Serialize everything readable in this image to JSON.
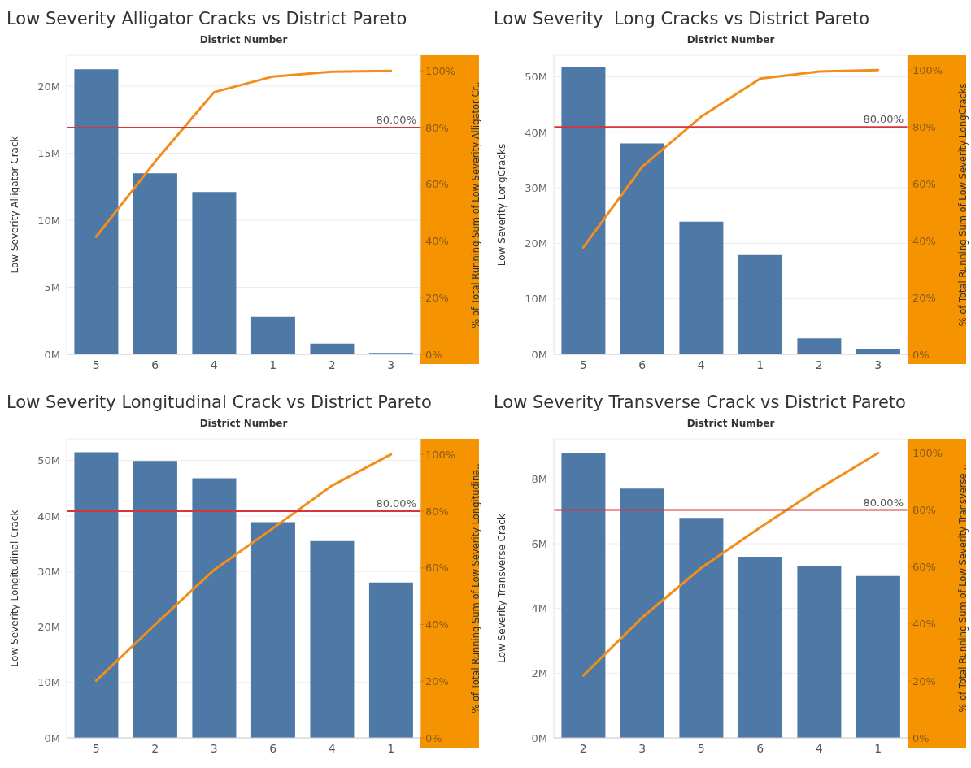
{
  "chart_data": [
    {
      "type": "bar",
      "title": "Low Severity Alligator Cracks vs District Pareto",
      "xlabel": "District Number",
      "ylabel": "Low Severity Alligator Crack",
      "y2label": "% of Total Running Sum of Low Severity Alligator Cr..",
      "categories": [
        "5",
        "6",
        "4",
        "1",
        "2",
        "3"
      ],
      "series": [
        {
          "color": "#4e79a7",
          "values": [
            21250000,
            13500000,
            12100000,
            2800000,
            800000,
            100000
          ]
        },
        {
          "type": "line",
          "axis": "y2",
          "color": "#f28e1c",
          "values": [
            41.5,
            68,
            92.5,
            98,
            99.7,
            100
          ]
        }
      ],
      "ylim": [
        0,
        22300000
      ],
      "yticks": [
        {
          "value": 0,
          "label": "0M"
        },
        {
          "value": 5000000,
          "label": "5M"
        },
        {
          "value": 10000000,
          "label": "10M"
        },
        {
          "value": 15000000,
          "label": "15M"
        },
        {
          "value": 20000000,
          "label": "20M"
        }
      ],
      "y2lim": [
        0,
        105.5
      ],
      "y2ticks": [
        {
          "value": 0,
          "label": "0%"
        },
        {
          "value": 20,
          "label": "20%"
        },
        {
          "value": 40,
          "label": "40%"
        },
        {
          "value": 60,
          "label": "60%"
        },
        {
          "value": 80,
          "label": "80%"
        },
        {
          "value": 100,
          "label": "100%"
        }
      ],
      "ref_lines": [
        {
          "axis": "y2",
          "value": 80,
          "label": "80.00%",
          "color": "#d9343a"
        }
      ],
      "grid": "y",
      "legend": false,
      "marker": "none"
    },
    {
      "type": "bar",
      "title": "Low Severity  Long Cracks vs District Pareto",
      "xlabel": "District Number",
      "ylabel": "Low Severity LongCracks",
      "y2label": "% of Total Running Sum of Low Severity LongCracks",
      "categories": [
        "5",
        "6",
        "4",
        "1",
        "2",
        "3"
      ],
      "series": [
        {
          "color": "#4e79a7",
          "values": [
            51700000,
            38000000,
            23900000,
            17900000,
            2900000,
            1000000
          ]
        },
        {
          "type": "line",
          "axis": "y2",
          "color": "#f28e1c",
          "values": [
            37.6,
            66,
            83.6,
            97,
            99.5,
            100
          ]
        }
      ],
      "ylim": [
        0,
        53900000
      ],
      "yticks": [
        {
          "value": 0,
          "label": "0M"
        },
        {
          "value": 10000000,
          "label": "10M"
        },
        {
          "value": 20000000,
          "label": "20M"
        },
        {
          "value": 30000000,
          "label": "30M"
        },
        {
          "value": 40000000,
          "label": "40M"
        },
        {
          "value": 50000000,
          "label": "50M"
        }
      ],
      "y2lim": [
        0,
        105.2
      ],
      "y2ticks": [
        {
          "value": 0,
          "label": "0%"
        },
        {
          "value": 20,
          "label": "20%"
        },
        {
          "value": 40,
          "label": "40%"
        },
        {
          "value": 60,
          "label": "60%"
        },
        {
          "value": 80,
          "label": "80%"
        },
        {
          "value": 100,
          "label": "100%"
        }
      ],
      "ref_lines": [
        {
          "axis": "y2",
          "value": 80,
          "label": "80.00%",
          "color": "#d9343a"
        }
      ],
      "grid": "y",
      "legend": false,
      "marker": "none"
    },
    {
      "type": "bar",
      "title": "Low Severity Longitudinal Crack vs District Pareto",
      "xlabel": "District Number",
      "ylabel": "Low Severity Longitudinal Crack",
      "y2label": "% of Total Running Sum of Low Severity Longitudina..",
      "categories": [
        "5",
        "2",
        "3",
        "6",
        "4",
        "1"
      ],
      "series": [
        {
          "color": "#4e79a7",
          "values": [
            51500000,
            49900000,
            46800000,
            38900000,
            35500000,
            28000000
          ]
        },
        {
          "type": "line",
          "axis": "y2",
          "color": "#f28e1c",
          "values": [
            20.2,
            40,
            59.3,
            74,
            89,
            100
          ]
        }
      ],
      "ylim": [
        0,
        53900000
      ],
      "yticks": [
        {
          "value": 0,
          "label": "0M"
        },
        {
          "value": 10000000,
          "label": "10M"
        },
        {
          "value": 20000000,
          "label": "20M"
        },
        {
          "value": 30000000,
          "label": "30M"
        },
        {
          "value": 40000000,
          "label": "40M"
        },
        {
          "value": 50000000,
          "label": "50M"
        }
      ],
      "y2lim": [
        0,
        105.5
      ],
      "y2ticks": [
        {
          "value": 0,
          "label": "0%"
        },
        {
          "value": 20,
          "label": "20%"
        },
        {
          "value": 40,
          "label": "40%"
        },
        {
          "value": 60,
          "label": "60%"
        },
        {
          "value": 80,
          "label": "80%"
        },
        {
          "value": 100,
          "label": "100%"
        }
      ],
      "ref_lines": [
        {
          "axis": "y2",
          "value": 80,
          "label": "80.00%",
          "color": "#d9343a"
        }
      ],
      "grid": "y",
      "legend": false,
      "marker": "none"
    },
    {
      "type": "bar",
      "title": "Low Severity Transverse Crack vs District Pareto",
      "xlabel": "District Number",
      "ylabel": "Low Severity Transverse Crack",
      "y2label": "% of Total Running Sum of Low Severity Transverse ..",
      "categories": [
        "2",
        "3",
        "5",
        "6",
        "4",
        "1"
      ],
      "series": [
        {
          "color": "#4e79a7",
          "values": [
            8800000,
            7700000,
            6800000,
            5600000,
            5300000,
            5000000
          ]
        },
        {
          "type": "line",
          "axis": "y2",
          "color": "#f28e1c",
          "values": [
            21.9,
            42.3,
            59.7,
            73.9,
            87.5,
            100
          ]
        }
      ],
      "ylim": [
        0,
        9240000
      ],
      "yticks": [
        {
          "value": 0,
          "label": "0M"
        },
        {
          "value": 2000000,
          "label": "2M"
        },
        {
          "value": 4000000,
          "label": "4M"
        },
        {
          "value": 6000000,
          "label": "6M"
        },
        {
          "value": 8000000,
          "label": "8M"
        }
      ],
      "y2lim": [
        0,
        105
      ],
      "y2ticks": [
        {
          "value": 0,
          "label": "0%"
        },
        {
          "value": 20,
          "label": "20%"
        },
        {
          "value": 40,
          "label": "40%"
        },
        {
          "value": 60,
          "label": "60%"
        },
        {
          "value": 80,
          "label": "80%"
        },
        {
          "value": 100,
          "label": "100%"
        }
      ],
      "ref_lines": [
        {
          "axis": "y2",
          "value": 80,
          "label": "80.00%",
          "color": "#d9343a"
        }
      ],
      "grid": "y",
      "legend": false,
      "marker": "none"
    }
  ]
}
